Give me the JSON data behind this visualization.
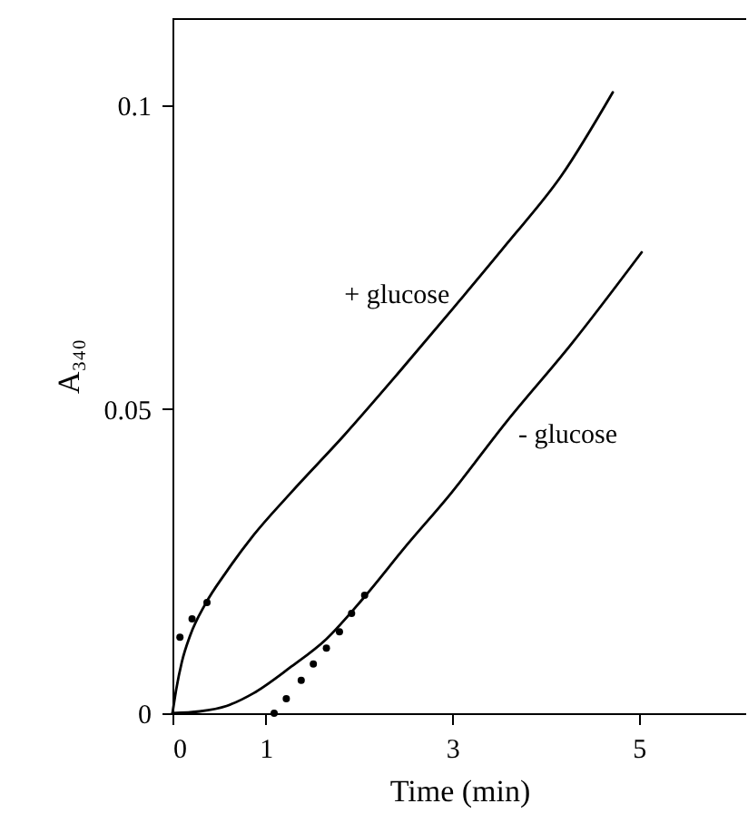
{
  "chart_data": {
    "type": "line",
    "xlabel": "Time (min)",
    "ylabel": "A₃₄₀",
    "xlim": [
      0,
      6.15
    ],
    "xticks": [
      0,
      1,
      3,
      5
    ],
    "ylim": [
      0,
      0.1143
    ],
    "yticks": [
      0,
      0.05,
      0.1
    ],
    "grid": false,
    "series": [
      {
        "name": "+ glucose",
        "color": "#000000",
        "x": [
          0,
          0.04,
          0.1,
          0.19,
          0.35,
          0.58,
          0.87,
          1.26,
          1.84,
          2.43,
          3.01,
          3.59,
          4.17,
          4.72
        ],
        "values": [
          0,
          0.0039,
          0.0084,
          0.0128,
          0.0179,
          0.0233,
          0.0293,
          0.0361,
          0.0457,
          0.0561,
          0.0666,
          0.0773,
          0.0884,
          0.1021
        ]
      },
      {
        "name": "- glucose",
        "color": "#000000",
        "x": [
          0,
          0.29,
          0.58,
          0.87,
          1.26,
          1.65,
          2.04,
          2.52,
          2.95,
          3.59,
          4.27,
          5.03
        ],
        "values": [
          0,
          0.0003,
          0.0012,
          0.0033,
          0.0075,
          0.0122,
          0.0188,
          0.0278,
          0.0355,
          0.0481,
          0.0606,
          0.0758
        ]
      },
      {
        "type": "scatter",
        "marker": "circle",
        "color": "#000000",
        "x": [
          0.08,
          0.21,
          0.37
        ],
        "values": [
          0.0125,
          0.0155,
          0.0182
        ]
      },
      {
        "type": "scatter",
        "marker": "circle",
        "color": "#000000",
        "x": [
          1.09,
          1.22,
          1.38,
          1.51,
          1.65,
          1.79,
          1.92,
          2.06
        ],
        "values": [
          0,
          0.0024,
          0.0054,
          0.0081,
          0.0107,
          0.0134,
          0.0164,
          0.0194
        ]
      }
    ]
  }
}
